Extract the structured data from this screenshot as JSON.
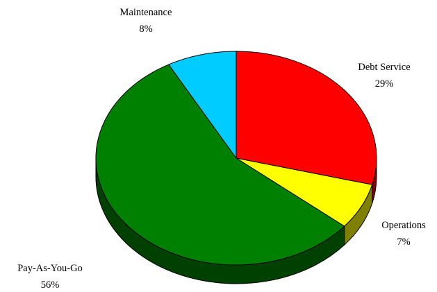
{
  "chart_data": {
    "type": "pie",
    "style": "3d",
    "title": "",
    "slices": [
      {
        "label": "Debt Service",
        "pct_label": "29%",
        "value": 29,
        "color": "#ff0000",
        "side_color": "#800000"
      },
      {
        "label": "Operations",
        "pct_label": "7%",
        "value": 7,
        "color": "#ffff00",
        "side_color": "#808000"
      },
      {
        "label": "Pay-As-You-Go",
        "pct_label": "56%",
        "value": 56,
        "color": "#008000",
        "side_color": "#004000"
      },
      {
        "label": "Maintenance",
        "pct_label": "8%",
        "value": 8,
        "color": "#00ccff",
        "side_color": "#006680"
      }
    ]
  }
}
